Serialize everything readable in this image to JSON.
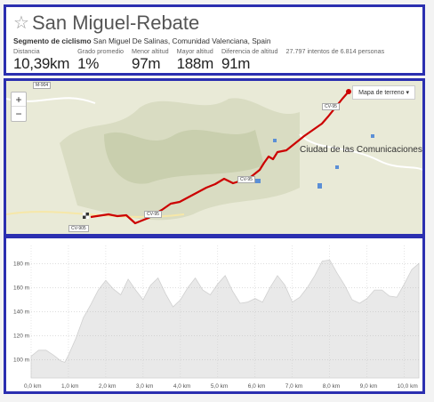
{
  "header": {
    "title": "San Miguel-Rebate",
    "segment_type": "Segmento de ciclismo",
    "location": "San Miguel De Salinas, Comunidad Valenciana, Spain",
    "stats": [
      {
        "label": "Distancia",
        "value": "10,39km"
      },
      {
        "label": "Grado promedio",
        "value": "1%"
      },
      {
        "label": "Menor altitud",
        "value": "97m"
      },
      {
        "label": "Mayor altitud",
        "value": "188m"
      },
      {
        "label": "Diferencia de altitud",
        "value": "91m"
      }
    ],
    "attempts": "27.797 intentos de 6.814 personas"
  },
  "map": {
    "zoom_in": "+",
    "zoom_out": "−",
    "map_type": "Mapa de terreno ▾",
    "place": "Ciudad de las Comunicaciones",
    "roads": [
      "M-904",
      "CV-95",
      "CV-95",
      "CV-95",
      "CV-905"
    ],
    "route_color": "#cc0000"
  },
  "chart_data": {
    "type": "area",
    "xlabel": "",
    "ylabel": "",
    "x_ticks": [
      "0,0 km",
      "1,0 km",
      "2,0 km",
      "3,0 km",
      "4,0 km",
      "5,0 km",
      "6,0 km",
      "7,0 km",
      "8,0 km",
      "9,0 km",
      "10,0 km"
    ],
    "y_ticks": [
      "100 m",
      "120 m",
      "140 m",
      "160 m",
      "180 m"
    ],
    "xlim": [
      0,
      10.39
    ],
    "ylim": [
      85,
      195
    ],
    "x": [
      0,
      0.2,
      0.4,
      0.6,
      0.8,
      0.9,
      1.0,
      1.2,
      1.4,
      1.6,
      1.8,
      2.0,
      2.2,
      2.4,
      2.6,
      2.8,
      3.0,
      3.2,
      3.4,
      3.6,
      3.8,
      4.0,
      4.2,
      4.4,
      4.6,
      4.8,
      5.0,
      5.2,
      5.4,
      5.6,
      5.8,
      6.0,
      6.2,
      6.4,
      6.6,
      6.8,
      7.0,
      7.2,
      7.4,
      7.6,
      7.8,
      8.0,
      8.2,
      8.4,
      8.6,
      8.8,
      9.0,
      9.2,
      9.4,
      9.6,
      9.8,
      10.0,
      10.2,
      10.39
    ],
    "y": [
      103,
      108,
      108,
      104,
      99,
      98,
      104,
      118,
      135,
      146,
      158,
      166,
      159,
      154,
      167,
      158,
      150,
      162,
      168,
      155,
      144,
      150,
      160,
      168,
      158,
      154,
      163,
      170,
      157,
      147,
      148,
      151,
      148,
      160,
      170,
      162,
      148,
      152,
      160,
      170,
      182,
      183,
      172,
      162,
      150,
      147,
      151,
      158,
      158,
      153,
      152,
      163,
      175,
      180
    ],
    "fill": "#e9e9e9",
    "grid": true
  }
}
